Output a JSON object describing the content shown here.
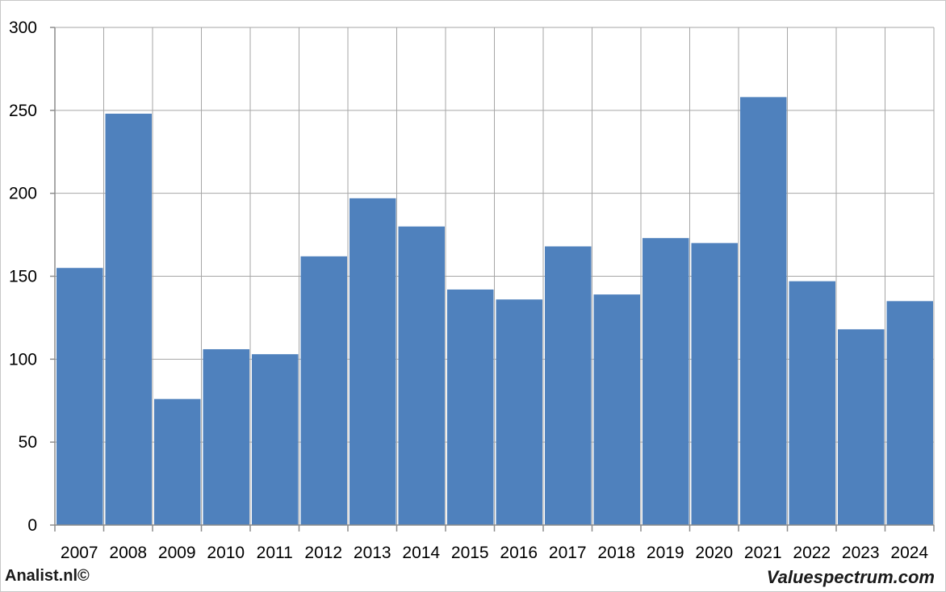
{
  "footer": {
    "left_text": "Analist.nl©",
    "right_text": "Valuespectrum.com"
  },
  "chart_data": {
    "type": "bar",
    "categories": [
      "2007",
      "2008",
      "2009",
      "2010",
      "2011",
      "2012",
      "2013",
      "2014",
      "2015",
      "2016",
      "2017",
      "2018",
      "2019",
      "2020",
      "2021",
      "2022",
      "2023",
      "2024"
    ],
    "values": [
      155,
      248,
      76,
      106,
      103,
      162,
      197,
      180,
      142,
      136,
      168,
      139,
      173,
      170,
      258,
      147,
      118,
      135
    ],
    "ylim": [
      0,
      300
    ],
    "yticks": [
      0,
      50,
      100,
      150,
      200,
      250,
      300
    ],
    "title": "",
    "xlabel": "",
    "ylabel": "",
    "grid": true,
    "bar_color": "#4f81bd",
    "grid_color": "#a6a6a6",
    "axis_color": "#8c8c8c"
  }
}
